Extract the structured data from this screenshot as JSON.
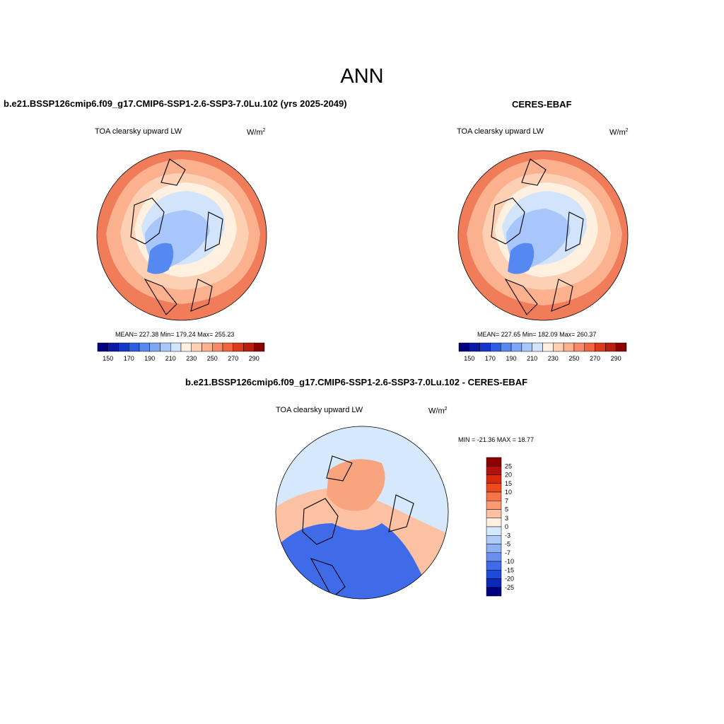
{
  "figure": {
    "title": "ANN"
  },
  "panels": {
    "model": {
      "title": "b.e21.BSSP126cmip6.f09_g17.CMIP6-SSP1-2.6-SSP3-7.0Lu.102 (yrs 2025-2049)",
      "variable": "TOA clearsky upward LW",
      "units_base": "W/m",
      "units_exp": "2",
      "stats": "MEAN= 227.38  Min= 179.24  Max= 255.23"
    },
    "obs": {
      "title": "CERES-EBAF",
      "variable": "TOA clearsky upward LW",
      "units_base": "W/m",
      "units_exp": "2",
      "stats": "MEAN= 227.65  Min= 182.09  Max= 260.37"
    },
    "diff": {
      "title": "b.e21.BSSP126cmip6.f09_g17.CMIP6-SSP1-2.6-SSP3-7.0Lu.102 - CERES-EBAF",
      "variable": "TOA clearsky upward LW",
      "units_base": "W/m",
      "units_exp": "2",
      "stats": "MIN = -21.36 MAX =  18.77"
    }
  },
  "colorbars": {
    "abs": {
      "colors": [
        "#00007f",
        "#0a1aa6",
        "#1436cc",
        "#2e5ce6",
        "#5588f0",
        "#7fa6f5",
        "#a9c6fa",
        "#d2e4fc",
        "#fff0df",
        "#fdd0b4",
        "#fbb08e",
        "#f7896a",
        "#f0643e",
        "#dd3a1c",
        "#bb1e0c",
        "#8b0000"
      ],
      "labels": [
        "150",
        "170",
        "190",
        "210",
        "230",
        "250",
        "270",
        "290"
      ]
    },
    "diff": {
      "colors": [
        "#8b0000",
        "#b51010",
        "#d62a0c",
        "#ee4a1e",
        "#f67448",
        "#fa9a74",
        "#fcc0a2",
        "#fff0df",
        "#d6e8fc",
        "#b0cbf8",
        "#8fb0f4",
        "#6a90ee",
        "#3f6be8",
        "#1e4ad8",
        "#0b28b8",
        "#00007f"
      ],
      "labels": [
        "25",
        "20",
        "15",
        "10",
        "7",
        "5",
        "3",
        "0",
        "-3",
        "-5",
        "-7",
        "-10",
        "-15",
        "-20",
        "-25"
      ]
    }
  },
  "map_colors": {
    "abs_warm": "#f07c5a",
    "abs_mid": "#fbb08e",
    "abs_light": "#fdd0b4",
    "abs_pale": "#fff0df",
    "abs_cool": "#d2e4fc",
    "abs_cold": "#a9c6fa",
    "abs_coldest": "#5588f0",
    "diff_red": "#f8a47e",
    "diff_pale": "#fcc0a2",
    "diff_blue": "#3f6be8",
    "diff_lightblue": "#d6e8fc"
  }
}
